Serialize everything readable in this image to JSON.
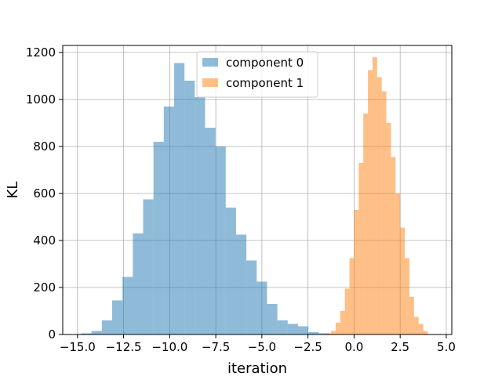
{
  "chart_data": {
    "type": "histogram",
    "title": "",
    "xlabel": "iteration",
    "ylabel": "KL",
    "xlim": [
      -15.8,
      5.3
    ],
    "ylim": [
      0,
      1230
    ],
    "xticks": [
      "−15.0",
      "−12.5",
      "−10.0",
      "−7.5",
      "−5.0",
      "−2.5",
      "0.0",
      "2.5",
      "5.0"
    ],
    "xtick_values": [
      -15,
      -12.5,
      -10,
      -7.5,
      -5,
      -2.5,
      0,
      2.5,
      5
    ],
    "yticks": [
      "0",
      "200",
      "400",
      "600",
      "800",
      "1000",
      "1200"
    ],
    "ytick_values": [
      0,
      200,
      400,
      600,
      800,
      1000,
      1200
    ],
    "grid": true,
    "legend_position": "upper-center",
    "series": [
      {
        "name": "component 0",
        "color": "#1f77b4",
        "alpha": 0.5,
        "bin_edges": [
          -14.8,
          -14.24,
          -13.68,
          -13.12,
          -12.56,
          -12.0,
          -11.44,
          -10.88,
          -10.32,
          -9.76,
          -9.2,
          -8.64,
          -8.08,
          -7.52,
          -6.96,
          -6.4,
          -5.84,
          -5.28,
          -4.72,
          -4.16,
          -3.6,
          -3.04,
          -2.48,
          -1.92,
          -1.36
        ],
        "counts": [
          5,
          15,
          60,
          145,
          245,
          430,
          575,
          820,
          970,
          1155,
          1080,
          1010,
          880,
          800,
          540,
          425,
          315,
          225,
          130,
          60,
          45,
          35,
          10,
          5
        ]
      },
      {
        "name": "component 1",
        "color": "#ff7f0e",
        "alpha": 0.5,
        "bin_edges": [
          -1.5,
          -1.25,
          -1.0,
          -0.75,
          -0.5,
          -0.25,
          0.0,
          0.25,
          0.5,
          0.75,
          1.0,
          1.25,
          1.5,
          1.75,
          2.0,
          2.25,
          2.5,
          2.75,
          3.0,
          3.25,
          3.5,
          3.75,
          4.0
        ],
        "counts": [
          5,
          15,
          50,
          100,
          195,
          325,
          530,
          730,
          940,
          1125,
          1180,
          1095,
          1035,
          900,
          755,
          600,
          455,
          325,
          160,
          75,
          45,
          15
        ]
      }
    ]
  }
}
